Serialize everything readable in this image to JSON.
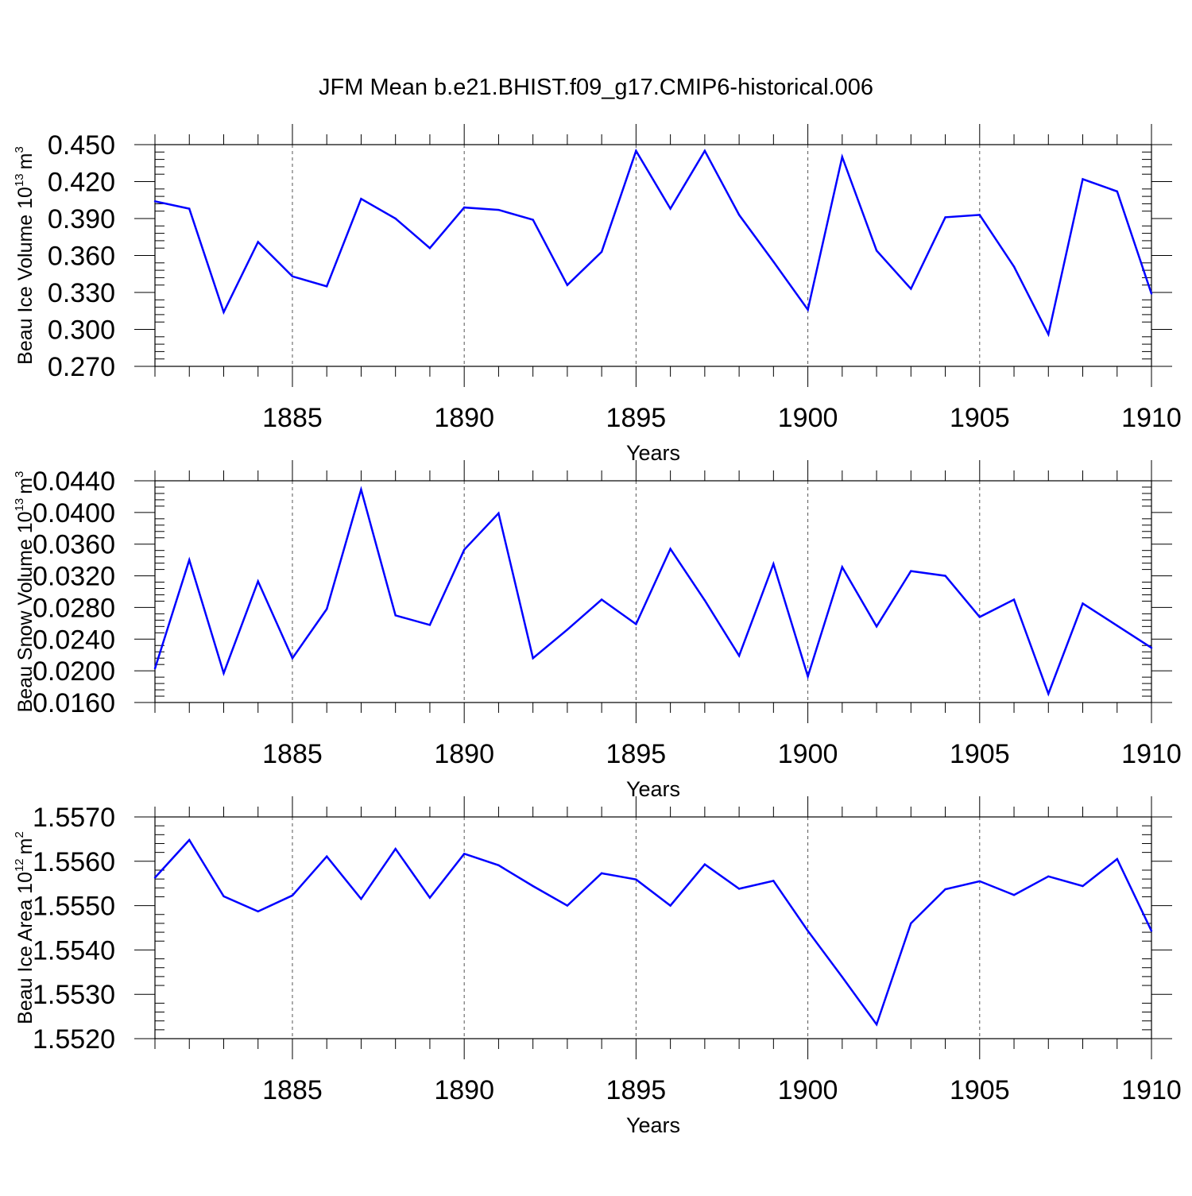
{
  "title": "JFM Mean b.e21.BHIST.f09_g17.CMIP6-historical.006",
  "colors": {
    "line": "#0000ff",
    "axis": "#000000",
    "grid": "#555555"
  },
  "chart_data": [
    {
      "type": "line",
      "name": "ice-volume",
      "ylabel_text": "Beau Ice Volume 10",
      "ylabel_exp": "13",
      "ylabel_unit": "m",
      "ylabel_unit_exp": "3",
      "xlabel": "Years",
      "xlim": [
        1881,
        1910
      ],
      "ylim": [
        0.27,
        0.45
      ],
      "yticks": [
        0.27,
        0.3,
        0.33,
        0.36,
        0.39,
        0.42,
        0.45
      ],
      "ytick_labels": [
        "0.270",
        "0.300",
        "0.330",
        "0.360",
        "0.390",
        "0.420",
        "0.450"
      ],
      "xticks": [
        1885,
        1890,
        1895,
        1900,
        1905,
        1910
      ],
      "xtick_labels": [
        "1885",
        "1890",
        "1895",
        "1900",
        "1905",
        "1910"
      ],
      "grid": "vertical dashed",
      "x": [
        1881,
        1882,
        1883,
        1884,
        1885,
        1886,
        1887,
        1888,
        1889,
        1890,
        1891,
        1892,
        1893,
        1894,
        1895,
        1896,
        1897,
        1898,
        1899,
        1900,
        1901,
        1902,
        1903,
        1904,
        1905,
        1906,
        1907,
        1908,
        1909,
        1910
      ],
      "values": [
        0.404,
        0.398,
        0.314,
        0.371,
        0.343,
        0.335,
        0.406,
        0.39,
        0.366,
        0.399,
        0.397,
        0.389,
        0.336,
        0.363,
        0.445,
        0.398,
        0.445,
        0.393,
        0.355,
        0.316,
        0.44,
        0.364,
        0.333,
        0.391,
        0.393,
        0.351,
        0.296,
        0.422,
        0.412,
        0.329
      ]
    },
    {
      "type": "line",
      "name": "snow-volume",
      "ylabel_text": "Beau Snow Volume 10",
      "ylabel_exp": "13",
      "ylabel_unit": "m",
      "ylabel_unit_exp": "3",
      "xlabel": "Years",
      "xlim": [
        1881,
        1910
      ],
      "ylim": [
        0.016,
        0.044
      ],
      "yticks": [
        0.016,
        0.02,
        0.024,
        0.028,
        0.032,
        0.036,
        0.04,
        0.044
      ],
      "ytick_labels": [
        "0.0160",
        "0.0200",
        "0.0240",
        "0.0280",
        "0.0320",
        "0.0360",
        "0.0400",
        "0.0440"
      ],
      "xticks": [
        1885,
        1890,
        1895,
        1900,
        1905,
        1910
      ],
      "xtick_labels": [
        "1885",
        "1890",
        "1895",
        "1900",
        "1905",
        "1910"
      ],
      "grid": "vertical dashed",
      "x": [
        1881,
        1882,
        1883,
        1884,
        1885,
        1886,
        1887,
        1888,
        1889,
        1890,
        1891,
        1892,
        1893,
        1894,
        1895,
        1896,
        1897,
        1898,
        1899,
        1900,
        1901,
        1902,
        1903,
        1904,
        1905,
        1906,
        1907,
        1908,
        1909,
        1910
      ],
      "values": [
        0.0203,
        0.034,
        0.0197,
        0.0313,
        0.0216,
        0.0278,
        0.0429,
        0.027,
        0.0258,
        0.0353,
        0.0399,
        0.0216,
        0.0252,
        0.029,
        0.0259,
        0.0354,
        0.0289,
        0.0219,
        0.0335,
        0.0193,
        0.0331,
        0.0256,
        0.0326,
        0.032,
        0.0268,
        0.029,
        0.0171,
        0.0285,
        0.0257,
        0.0229
      ]
    },
    {
      "type": "line",
      "name": "ice-area",
      "ylabel_text": "Beau Ice Area 10",
      "ylabel_exp": "12",
      "ylabel_unit": "m",
      "ylabel_unit_exp": "2",
      "xlabel": "Years",
      "xlim": [
        1881,
        1910
      ],
      "ylim": [
        1.552,
        1.557
      ],
      "yticks": [
        1.552,
        1.553,
        1.554,
        1.555,
        1.556,
        1.557
      ],
      "ytick_labels": [
        "1.5520",
        "1.5530",
        "1.5540",
        "1.5550",
        "1.5560",
        "1.5570"
      ],
      "xticks": [
        1885,
        1890,
        1895,
        1900,
        1905,
        1910
      ],
      "xtick_labels": [
        "1885",
        "1890",
        "1895",
        "1900",
        "1905",
        "1910"
      ],
      "grid": "vertical dashed",
      "x": [
        1881,
        1882,
        1883,
        1884,
        1885,
        1886,
        1887,
        1888,
        1889,
        1890,
        1891,
        1892,
        1893,
        1894,
        1895,
        1896,
        1897,
        1898,
        1899,
        1900,
        1901,
        1902,
        1903,
        1904,
        1905,
        1906,
        1907,
        1908,
        1909,
        1910
      ],
      "values": [
        1.55563,
        1.55648,
        1.55521,
        1.55487,
        1.55523,
        1.55611,
        1.55515,
        1.55628,
        1.55518,
        1.55617,
        1.55591,
        1.55544,
        1.555,
        1.55573,
        1.55559,
        1.555,
        1.55593,
        1.55538,
        1.55556,
        1.55443,
        1.55339,
        1.55232,
        1.5546,
        1.55537,
        1.55555,
        1.55524,
        1.55566,
        1.55544,
        1.55605,
        1.55443
      ]
    }
  ]
}
